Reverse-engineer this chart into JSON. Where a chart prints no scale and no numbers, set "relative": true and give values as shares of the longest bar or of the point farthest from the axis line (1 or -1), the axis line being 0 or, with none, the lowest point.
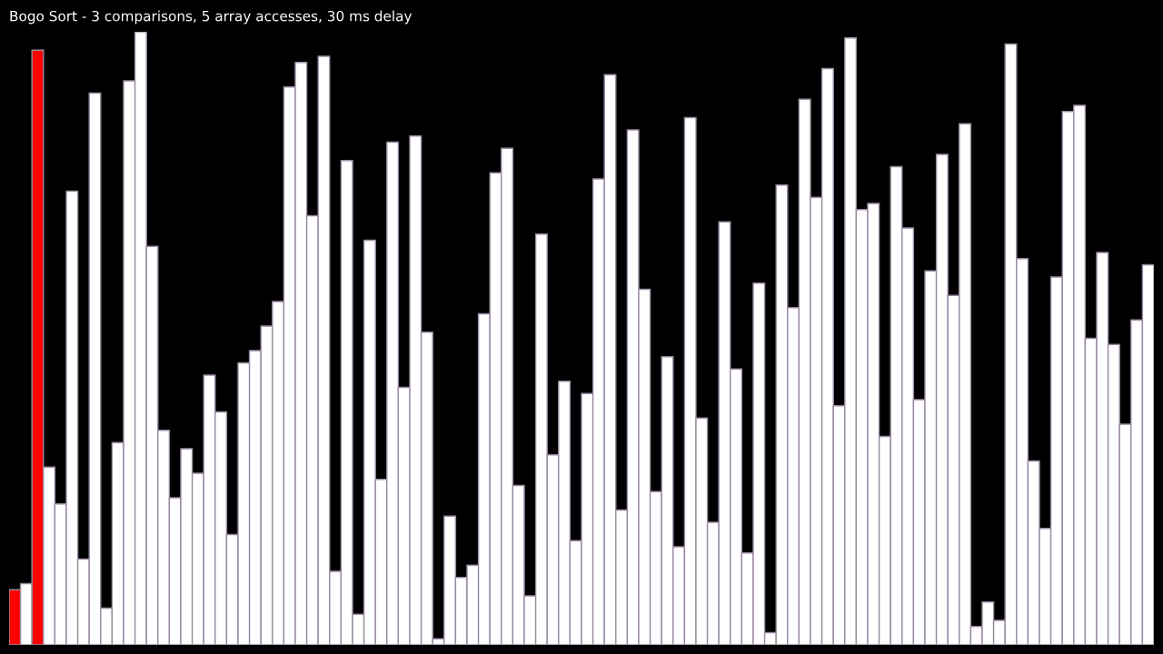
{
  "chart_data": {
    "type": "bar",
    "title": "Bogo Sort - 3 comparisons, 5 array accesses, 30 ms delay",
    "relative": true,
    "categories": [
      null,
      null,
      null,
      null,
      null,
      null,
      null,
      null,
      null,
      null,
      null,
      null,
      null,
      null,
      null,
      null,
      null,
      null,
      null,
      null,
      null,
      null,
      null,
      null,
      null,
      null,
      null,
      null,
      null,
      null,
      null,
      null,
      null,
      null,
      null,
      null,
      null,
      null,
      null,
      null,
      null,
      null,
      null,
      null,
      null,
      null,
      null,
      null,
      null,
      null,
      null,
      null,
      null,
      null,
      null,
      null,
      null,
      null,
      null,
      null,
      null,
      null,
      null,
      null,
      null,
      null,
      null,
      null,
      null,
      null,
      null,
      null,
      null,
      null,
      null,
      null,
      null,
      null,
      null,
      null,
      null,
      null,
      null,
      null,
      null,
      null,
      null,
      null,
      null,
      null,
      null,
      null,
      null,
      null,
      null,
      null,
      null,
      null,
      null,
      null
    ],
    "values": [
      0.09,
      0.1,
      0.97,
      0.29,
      0.23,
      0.74,
      0.14,
      0.9,
      0.06,
      0.33,
      0.92,
      1,
      0.65,
      0.35,
      0.24,
      0.32,
      0.28,
      0.44,
      0.38,
      0.18,
      0.46,
      0.48,
      0.52,
      0.56,
      0.91,
      0.95,
      0.7,
      0.96,
      0.12,
      0.79,
      0.05,
      0.66,
      0.27,
      0.82,
      0.42,
      0.83,
      0.51,
      0.01,
      0.21,
      0.11,
      0.13,
      0.54,
      0.77,
      0.81,
      0.26,
      0.08,
      0.67,
      0.31,
      0.43,
      0.17,
      0.41,
      0.76,
      0.93,
      0.22,
      0.84,
      0.58,
      0.25,
      0.47,
      0.16,
      0.86,
      0.37,
      0.2,
      0.69,
      0.45,
      0.15,
      0.59,
      0.02,
      0.75,
      0.55,
      0.89,
      0.73,
      0.94,
      0.39,
      0.99,
      0.71,
      0.72,
      0.34,
      0.78,
      0.68,
      0.4,
      0.61,
      0.8,
      0.57,
      0.85,
      0.03,
      0.07,
      0.04,
      0.98,
      0.63,
      0.3,
      0.19,
      0.6,
      0.87,
      0.88,
      0.5,
      0.64,
      0.49,
      0.36,
      0.53,
      0.62
    ],
    "colors": [
      "#ff0000",
      "#ffffff",
      "#ff0000",
      "#ffffff",
      "#ffffff",
      "#ffffff",
      "#ffffff",
      "#ffffff",
      "#ffffff",
      "#ffffff",
      "#ffffff",
      "#ffffff",
      "#ffffff",
      "#ffffff",
      "#ffffff",
      "#ffffff",
      "#ffffff",
      "#ffffff",
      "#ffffff",
      "#ffffff",
      "#ffffff",
      "#ffffff",
      "#ffffff",
      "#ffffff",
      "#ffffff",
      "#ffffff",
      "#ffffff",
      "#ffffff",
      "#ffffff",
      "#ffffff",
      "#ffffff",
      "#ffffff",
      "#ffffff",
      "#ffffff",
      "#ffffff",
      "#ffffff",
      "#ffffff",
      "#ffffff",
      "#ffffff",
      "#ffffff",
      "#ffffff",
      "#ffffff",
      "#ffffff",
      "#ffffff",
      "#ffffff",
      "#ffffff",
      "#ffffff",
      "#ffffff",
      "#ffffff",
      "#ffffff",
      "#ffffff",
      "#ffffff",
      "#ffffff",
      "#ffffff",
      "#ffffff",
      "#ffffff",
      "#ffffff",
      "#ffffff",
      "#ffffff",
      "#ffffff",
      "#ffffff",
      "#ffffff",
      "#ffffff",
      "#ffffff",
      "#ffffff",
      "#ffffff",
      "#ffffff",
      "#ffffff",
      "#ffffff",
      "#ffffff",
      "#ffffff",
      "#ffffff",
      "#ffffff",
      "#ffffff",
      "#ffffff",
      "#ffffff",
      "#ffffff",
      "#ffffff",
      "#ffffff",
      "#ffffff",
      "#ffffff",
      "#ffffff",
      "#ffffff",
      "#ffffff",
      "#ffffff",
      "#ffffff",
      "#ffffff",
      "#ffffff",
      "#ffffff",
      "#ffffff",
      "#ffffff",
      "#ffffff",
      "#ffffff",
      "#ffffff",
      "#ffffff",
      "#ffffff",
      "#ffffff",
      "#ffffff",
      "#ffffff",
      "#ffffff"
    ]
  }
}
